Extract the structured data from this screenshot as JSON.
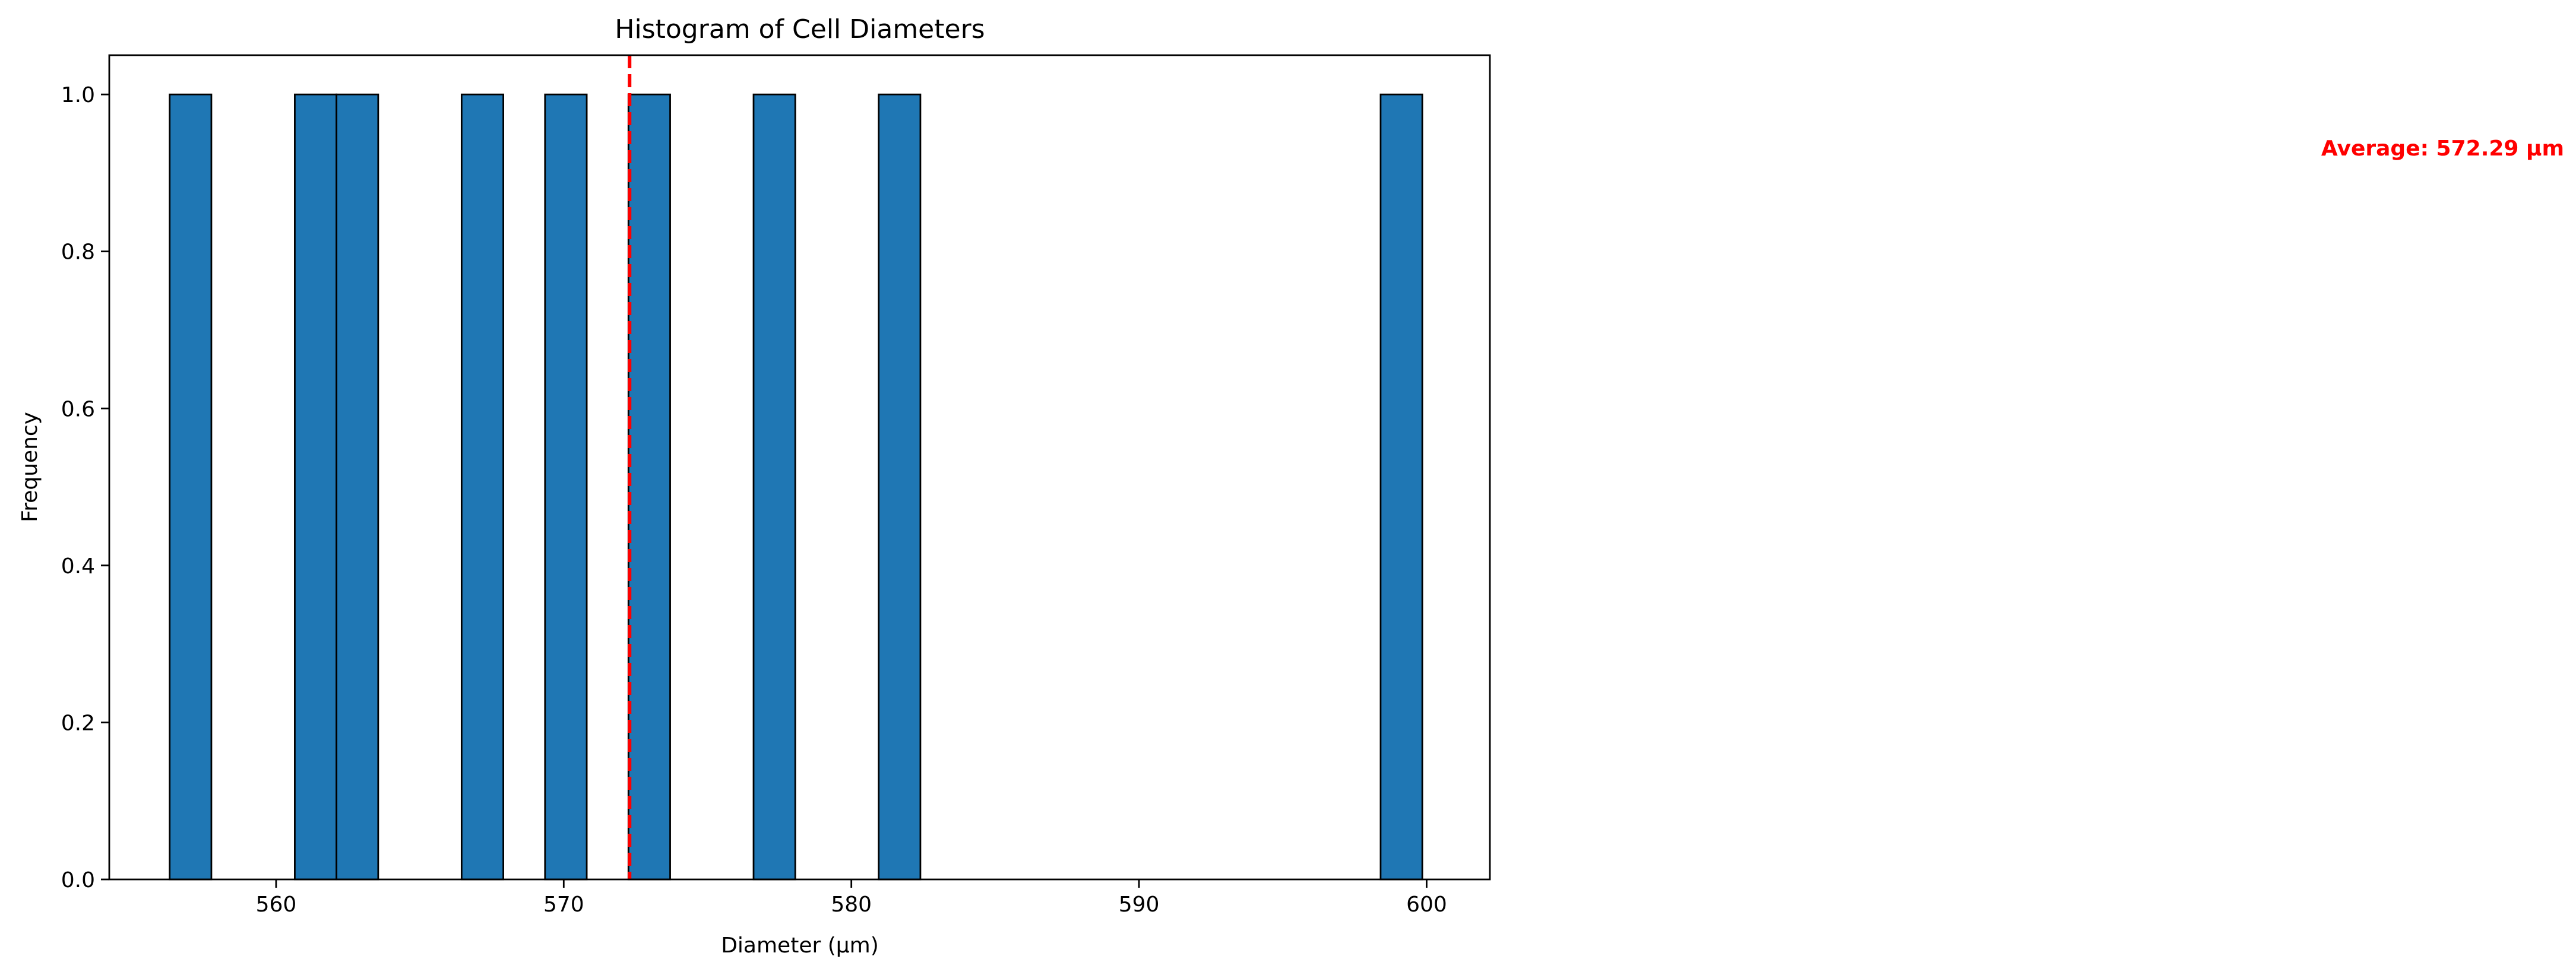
{
  "colors": {
    "bar_fill": "#1f77b4",
    "bar_edge": "#000000",
    "average_line": "#ff0000",
    "average_label": "#ff0000"
  },
  "chart_data": {
    "type": "bar",
    "title": "Histogram of Cell Diameters",
    "xlabel": "Diameter (µm)",
    "ylabel": "Frequency",
    "xlim": [
      554.2,
      602.2
    ],
    "ylim": [
      0,
      1.05
    ],
    "grid": false,
    "bin_width": 1.45,
    "bars": [
      {
        "x_start": 556.3,
        "x_end": 557.75,
        "value": 1
      },
      {
        "x_start": 560.65,
        "x_end": 562.1,
        "value": 1
      },
      {
        "x_start": 562.1,
        "x_end": 563.55,
        "value": 1
      },
      {
        "x_start": 566.45,
        "x_end": 567.9,
        "value": 1
      },
      {
        "x_start": 569.35,
        "x_end": 570.8,
        "value": 1
      },
      {
        "x_start": 572.25,
        "x_end": 573.7,
        "value": 1
      },
      {
        "x_start": 576.6,
        "x_end": 578.05,
        "value": 1
      },
      {
        "x_start": 580.95,
        "x_end": 582.4,
        "value": 1
      },
      {
        "x_start": 598.4,
        "x_end": 599.85,
        "value": 1
      }
    ],
    "x_ticks": [
      {
        "value": 560,
        "label": "560"
      },
      {
        "value": 570,
        "label": "570"
      },
      {
        "value": 580,
        "label": "580"
      },
      {
        "value": 590,
        "label": "590"
      },
      {
        "value": 600,
        "label": "600"
      }
    ],
    "y_ticks": [
      {
        "value": 0.0,
        "label": "0.0"
      },
      {
        "value": 0.2,
        "label": "0.2"
      },
      {
        "value": 0.4,
        "label": "0.4"
      },
      {
        "value": 0.6,
        "label": "0.6"
      },
      {
        "value": 0.8,
        "label": "0.8"
      },
      {
        "value": 1.0,
        "label": "1.0"
      }
    ],
    "average": {
      "value": 572.29,
      "label": "Average: 572.29 µm",
      "line_style": "dashed"
    }
  }
}
